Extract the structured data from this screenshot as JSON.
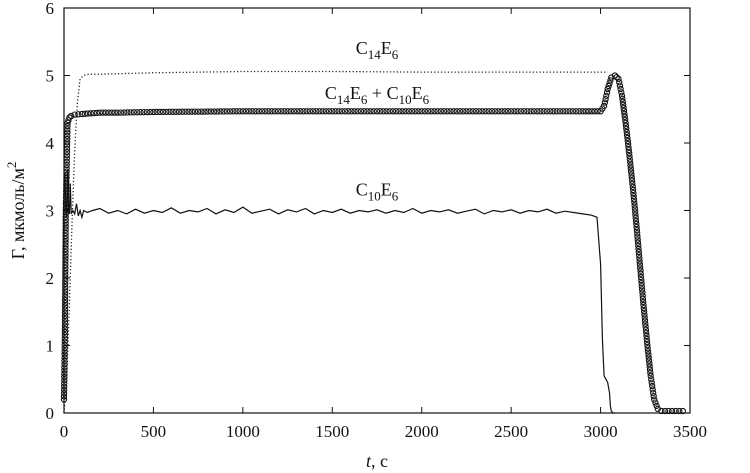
{
  "chart_data": {
    "type": "line",
    "xlabel_var": "t",
    "xlabel_unit": ", с",
    "ylabel": "Г, мкмоль/м",
    "ylabel_sup": "2",
    "xlim": [
      0,
      3500
    ],
    "ylim": [
      0,
      6
    ],
    "x_ticks": [
      0,
      500,
      1000,
      1500,
      2000,
      2500,
      3000,
      3500
    ],
    "y_ticks": [
      0,
      1,
      2,
      3,
      4,
      5,
      6
    ],
    "grid": false,
    "series": [
      {
        "name": "C14E6",
        "style": "dotted",
        "x": [
          0,
          15,
          30,
          45,
          60,
          75,
          90,
          110,
          140,
          200,
          500,
          1000,
          1500,
          2000,
          2500,
          2900,
          3000,
          3040
        ],
        "y": [
          0,
          0.5,
          1.6,
          2.8,
          3.9,
          4.6,
          4.95,
          5.0,
          5.02,
          5.02,
          5.04,
          5.06,
          5.06,
          5.05,
          5.05,
          5.05,
          5.05,
          5.05
        ]
      },
      {
        "name": "C14E6 + C10E6",
        "style": "circles",
        "x": [
          0,
          5,
          10,
          20,
          30,
          40,
          60,
          100,
          200,
          300,
          500,
          1000,
          1500,
          2000,
          2500,
          2900,
          3000,
          3020,
          3040,
          3060,
          3080,
          3100,
          3120,
          3140,
          3160,
          3180,
          3200,
          3220,
          3240,
          3260,
          3280,
          3300,
          3320,
          3340,
          3360,
          3380,
          3400,
          3420,
          3440,
          3460
        ],
        "y": [
          0.2,
          1.2,
          3.0,
          4.3,
          4.38,
          4.4,
          4.42,
          4.43,
          4.45,
          4.45,
          4.46,
          4.47,
          4.47,
          4.47,
          4.47,
          4.47,
          4.47,
          4.55,
          4.8,
          4.97,
          5.0,
          4.95,
          4.7,
          4.3,
          3.85,
          3.35,
          2.8,
          2.2,
          1.6,
          1.05,
          0.55,
          0.2,
          0.06,
          0.03,
          0.03,
          0.03,
          0.03,
          0.03,
          0.03,
          0.03
        ]
      },
      {
        "name": "C10E6",
        "style": "solid",
        "x": [
          0,
          5,
          10,
          15,
          20,
          25,
          30,
          35,
          40,
          50,
          60,
          70,
          80,
          90,
          100,
          110,
          130,
          160,
          200,
          250,
          300,
          350,
          400,
          450,
          500,
          550,
          600,
          650,
          700,
          750,
          800,
          850,
          900,
          950,
          1000,
          1050,
          1100,
          1150,
          1200,
          1250,
          1300,
          1350,
          1400,
          1450,
          1500,
          1550,
          1600,
          1650,
          1700,
          1750,
          1800,
          1850,
          1900,
          1950,
          2000,
          2050,
          2100,
          2150,
          2200,
          2250,
          2300,
          2350,
          2400,
          2450,
          2500,
          2550,
          2600,
          2650,
          2700,
          2750,
          2800,
          2850,
          2900,
          2950,
          2980,
          3000,
          3010,
          3020,
          3030,
          3040,
          3050,
          3055,
          3060,
          3070,
          3080
        ],
        "y": [
          3.2,
          3.55,
          3.0,
          2.9,
          3.6,
          3.05,
          2.95,
          3.4,
          2.95,
          3.0,
          2.95,
          3.1,
          2.92,
          3.0,
          2.9,
          3.0,
          2.97,
          3.0,
          3.03,
          2.96,
          3.0,
          2.95,
          3.02,
          2.96,
          3.0,
          2.97,
          3.04,
          2.96,
          3.0,
          2.98,
          3.03,
          2.95,
          3.01,
          2.97,
          3.05,
          2.96,
          2.99,
          3.02,
          2.95,
          3.01,
          2.98,
          3.03,
          2.95,
          3.0,
          2.97,
          3.02,
          2.96,
          3.0,
          2.98,
          3.01,
          2.96,
          3.0,
          2.97,
          3.03,
          2.96,
          3.0,
          2.98,
          3.01,
          2.96,
          2.99,
          3.02,
          2.95,
          3.0,
          2.98,
          3.01,
          2.96,
          3.0,
          2.98,
          3.02,
          2.96,
          2.99,
          2.97,
          2.95,
          2.93,
          2.9,
          2.2,
          1.1,
          0.55,
          0.5,
          0.45,
          0.3,
          0.1,
          0.03,
          0.0,
          0.0
        ]
      }
    ],
    "labels": [
      {
        "base": "C",
        "sub1": "14",
        "mid": "E",
        "sub2": "6",
        "tail": "",
        "sub3": "",
        "x": 1750,
        "y": 5.32
      },
      {
        "base": "C",
        "sub1": "14",
        "mid": "E",
        "sub2": "6",
        "tail": " + C",
        "sub3": "10",
        "tail2": "E",
        "sub4": "6",
        "x": 1750,
        "y": 4.65
      },
      {
        "base": "C",
        "sub1": "10",
        "mid": "E",
        "sub2": "6",
        "tail": "",
        "sub3": "",
        "x": 1750,
        "y": 3.22
      }
    ]
  }
}
